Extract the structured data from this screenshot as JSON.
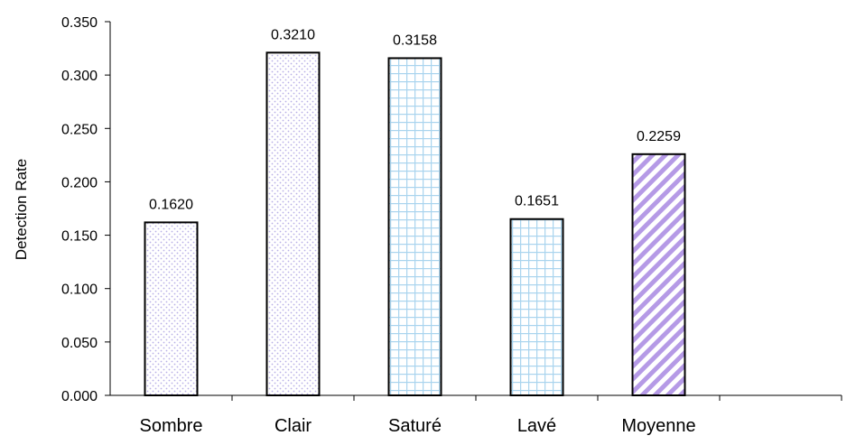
{
  "chart_data": {
    "type": "bar",
    "title": "",
    "xlabel": "",
    "ylabel": "Detection Rate",
    "ylim": [
      0,
      0.35
    ],
    "yticks": [
      "0.000",
      "0.050",
      "0.100",
      "0.150",
      "0.200",
      "0.250",
      "0.300",
      "0.350"
    ],
    "categories": [
      "Sombre",
      "Clair",
      "Saturé",
      "Lavé",
      "Moyenne"
    ],
    "values": [
      0.162,
      0.321,
      0.3158,
      0.1651,
      0.2259
    ],
    "value_labels": [
      "0.1620",
      "0.3210",
      "0.3158",
      "0.1651",
      "0.2259"
    ],
    "bar_styles": [
      "dots-lavender",
      "dots-lavender",
      "grid-lightblue",
      "grid-lightblue",
      "diagonal-violet"
    ],
    "colors": {
      "dots": "#b9b0e6",
      "grid": "#a9d4ee",
      "diagonal": "#b59ae6",
      "outline": "#000000"
    },
    "grid": false,
    "legend": "none"
  }
}
